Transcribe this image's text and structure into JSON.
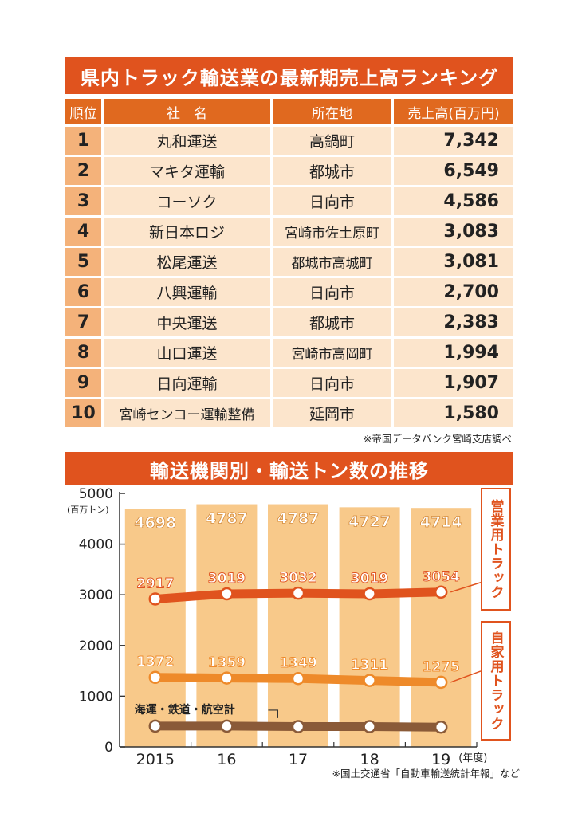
{
  "ranking": {
    "title": "県内トラック輸送業の最新期売上高ランキング",
    "headers": [
      "順位",
      "社　名",
      "所在地",
      "売上高(百万円)"
    ],
    "rows": [
      {
        "rank": "1",
        "name": "丸和運送",
        "location": "高鍋町",
        "sales": "7,342"
      },
      {
        "rank": "2",
        "name": "マキタ運輸",
        "location": "都城市",
        "sales": "6,549"
      },
      {
        "rank": "3",
        "name": "コーソク",
        "location": "日向市",
        "sales": "4,586"
      },
      {
        "rank": "4",
        "name": "新日本ロジ",
        "location": "宮崎市佐土原町",
        "sales": "3,083"
      },
      {
        "rank": "5",
        "name": "松尾運送",
        "location": "都城市高城町",
        "sales": "3,081"
      },
      {
        "rank": "6",
        "name": "八興運輸",
        "location": "日向市",
        "sales": "2,700"
      },
      {
        "rank": "7",
        "name": "中央運送",
        "location": "都城市",
        "sales": "2,383"
      },
      {
        "rank": "8",
        "name": "山口運送",
        "location": "宮崎市高岡町",
        "sales": "1,994"
      },
      {
        "rank": "9",
        "name": "日向運輸",
        "location": "日向市",
        "sales": "1,907"
      },
      {
        "rank": "10",
        "name": "宮崎センコー運輸整備",
        "location": "延岡市",
        "sales": "1,580"
      }
    ],
    "source": "※帝国データバンク宮崎支店調べ"
  },
  "chart_data": [
    {
      "type": "table",
      "title": "県内トラック輸送業の最新期売上高ランキング",
      "columns": [
        "順位",
        "社　名",
        "所在地",
        "売上高(百万円)"
      ],
      "rows": [
        [
          1,
          "丸和運送",
          "高鍋町",
          7342
        ],
        [
          2,
          "マキタ運輸",
          "都城市",
          6549
        ],
        [
          3,
          "コーソク",
          "日向市",
          4586
        ],
        [
          4,
          "新日本ロジ",
          "宮崎市佐土原町",
          3083
        ],
        [
          5,
          "松尾運送",
          "都城市高城町",
          3081
        ],
        [
          6,
          "八興運輸",
          "日向市",
          2700
        ],
        [
          7,
          "中央運送",
          "都城市",
          2383
        ],
        [
          8,
          "山口運送",
          "宮崎市高岡町",
          1994
        ],
        [
          9,
          "日向運輸",
          "日向市",
          1907
        ],
        [
          10,
          "宮崎センコー運輸整備",
          "延岡市",
          1580
        ]
      ]
    },
    {
      "type": "bar",
      "title": "輸送機関別・輸送トン数の推移",
      "ylabel": "(百万トン)",
      "ylim": [
        0,
        5000
      ],
      "yticks": [
        "5000",
        "4000",
        "3000",
        "2000",
        "1000",
        "0"
      ],
      "categories": [
        "2015",
        "16",
        "17",
        "18",
        "19"
      ],
      "xunit": "(年度)",
      "bar_values": [
        4698,
        4787,
        4787,
        4727,
        4714
      ],
      "bar_color": "#f8c98a",
      "series": [
        {
          "name": "営業用トラック",
          "type": "line",
          "values": [
            2917,
            3019,
            3032,
            3019,
            3054
          ],
          "color": "#e0531e"
        },
        {
          "name": "自家用トラック",
          "type": "line",
          "values": [
            1372,
            1359,
            1349,
            1311,
            1275
          ],
          "color": "#ee8a2a"
        },
        {
          "name": "海運・鉄道・航空計",
          "type": "line",
          "values": [
            410,
            410,
            400,
            400,
            390
          ],
          "color": "#8a5a38"
        }
      ],
      "grid": false,
      "source": "※国土交通省「自動車輸送統計年報」など"
    }
  ]
}
